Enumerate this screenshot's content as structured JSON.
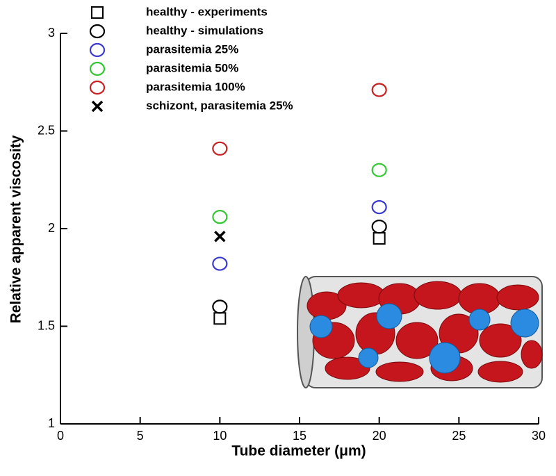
{
  "chart_data": {
    "type": "scatter",
    "x_label": "Tube diameter (μm)",
    "y_label": "Relative apparent viscosity",
    "x": [
      10,
      20
    ],
    "series": [
      {
        "name": "healthy - experiments",
        "color": "#000000",
        "marker": "square",
        "values": [
          1.54,
          1.95
        ]
      },
      {
        "name": "healthy - simulations",
        "color": "#000000",
        "marker": "circle",
        "values": [
          1.6,
          2.01
        ]
      },
      {
        "name": "parasitemia 25%",
        "color": "#3a3ad0",
        "marker": "circle",
        "values": [
          1.82,
          2.11
        ]
      },
      {
        "name": "parasitemia 50%",
        "color": "#33c833",
        "marker": "circle",
        "values": [
          2.06,
          2.3
        ]
      },
      {
        "name": "parasitemia 100%",
        "color": "#c82020",
        "marker": "circle",
        "values": [
          2.41,
          2.71
        ]
      },
      {
        "name": "schizont, parasitemia 25%",
        "color": "#000000",
        "marker": "x",
        "values": [
          1.96,
          null
        ]
      }
    ],
    "xlim": [
      0,
      30
    ],
    "ylim": [
      1,
      3
    ],
    "xticks": [
      0,
      5,
      10,
      15,
      20,
      25,
      30
    ],
    "yticks": [
      1,
      1.5,
      2,
      2.5,
      3
    ],
    "legend": "upper left"
  }
}
